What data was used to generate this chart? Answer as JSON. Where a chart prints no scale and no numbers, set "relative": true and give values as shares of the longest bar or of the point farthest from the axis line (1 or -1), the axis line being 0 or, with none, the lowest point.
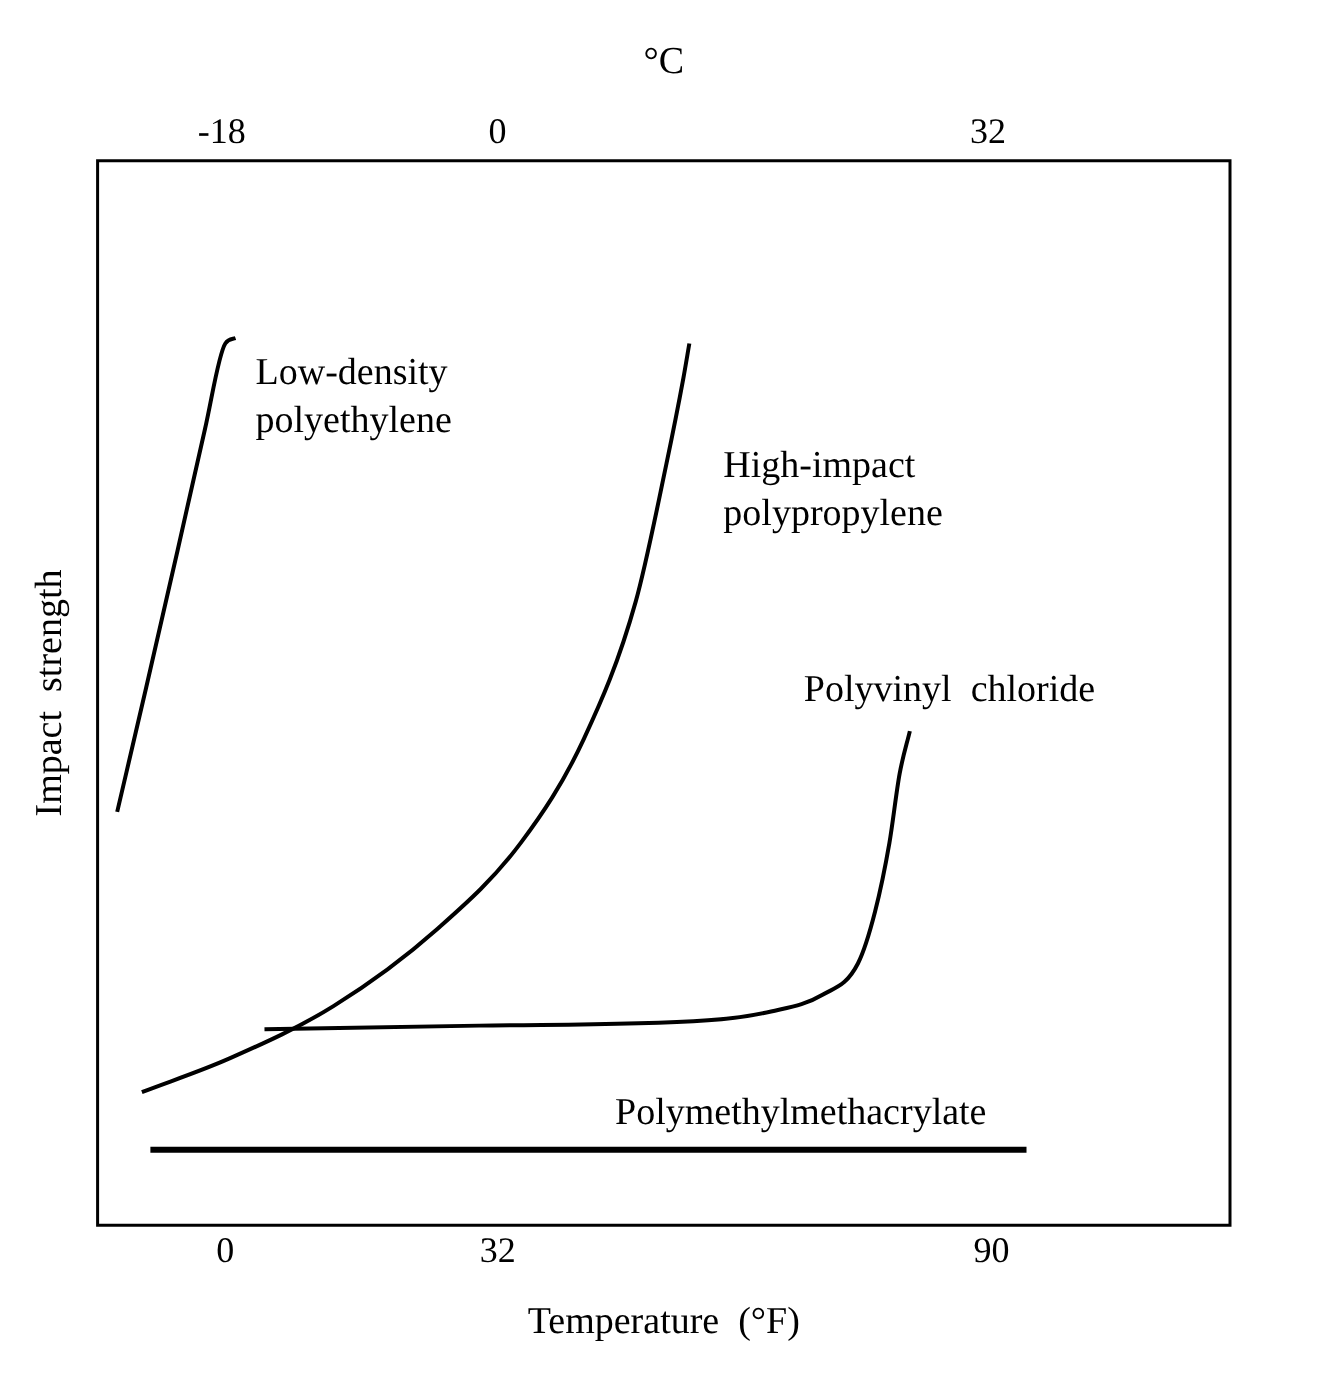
{
  "chart_data": {
    "type": "line",
    "xlabel": "Temperature  (°F)",
    "x2label": "°C",
    "ylabel": "Impact  strength",
    "relative": true,
    "xlim": [
      -15,
      118
    ],
    "xticks": [
      0,
      32,
      90
    ],
    "x2lim": [
      -26.1,
      47.8
    ],
    "x2ticks": [
      -18,
      0,
      32
    ],
    "marker": "none",
    "line_style": "solid",
    "series": [
      {
        "name": "Low-density polyethylene",
        "color": "#000000",
        "x": [
          -12.7,
          -9.3,
          -5.6,
          -2.4,
          0,
          1.2
        ],
        "values": [
          0.466,
          0.606,
          0.761,
          0.897,
          0.994,
          1.0
        ]
      },
      {
        "name": "High-impact polypropylene",
        "color": "#000000",
        "x": [
          -9.8,
          0.5,
          12.7,
          24.9,
          34.7,
          42.1,
          48.2,
          51.8,
          53.8,
          54.5
        ],
        "values": [
          0.15,
          0.188,
          0.247,
          0.334,
          0.431,
          0.548,
          0.703,
          0.858,
          0.955,
          0.994
        ]
      },
      {
        "name": "Polyvinyl  chloride",
        "color": "#000000",
        "x": [
          4.6,
          29.8,
          56.7,
          64.1,
          70.2,
          74.3,
          76.3,
          78.0,
          79.2,
          80.4
        ],
        "values": [
          0.221,
          0.225,
          0.231,
          0.241,
          0.26,
          0.295,
          0.353,
          0.431,
          0.509,
          0.557
        ]
      },
      {
        "name": "Polymethylmethacrylate",
        "color": "#000000",
        "x": [
          -8.8,
          94.1
        ],
        "values": [
          0.085,
          0.085
        ]
      }
    ]
  }
}
